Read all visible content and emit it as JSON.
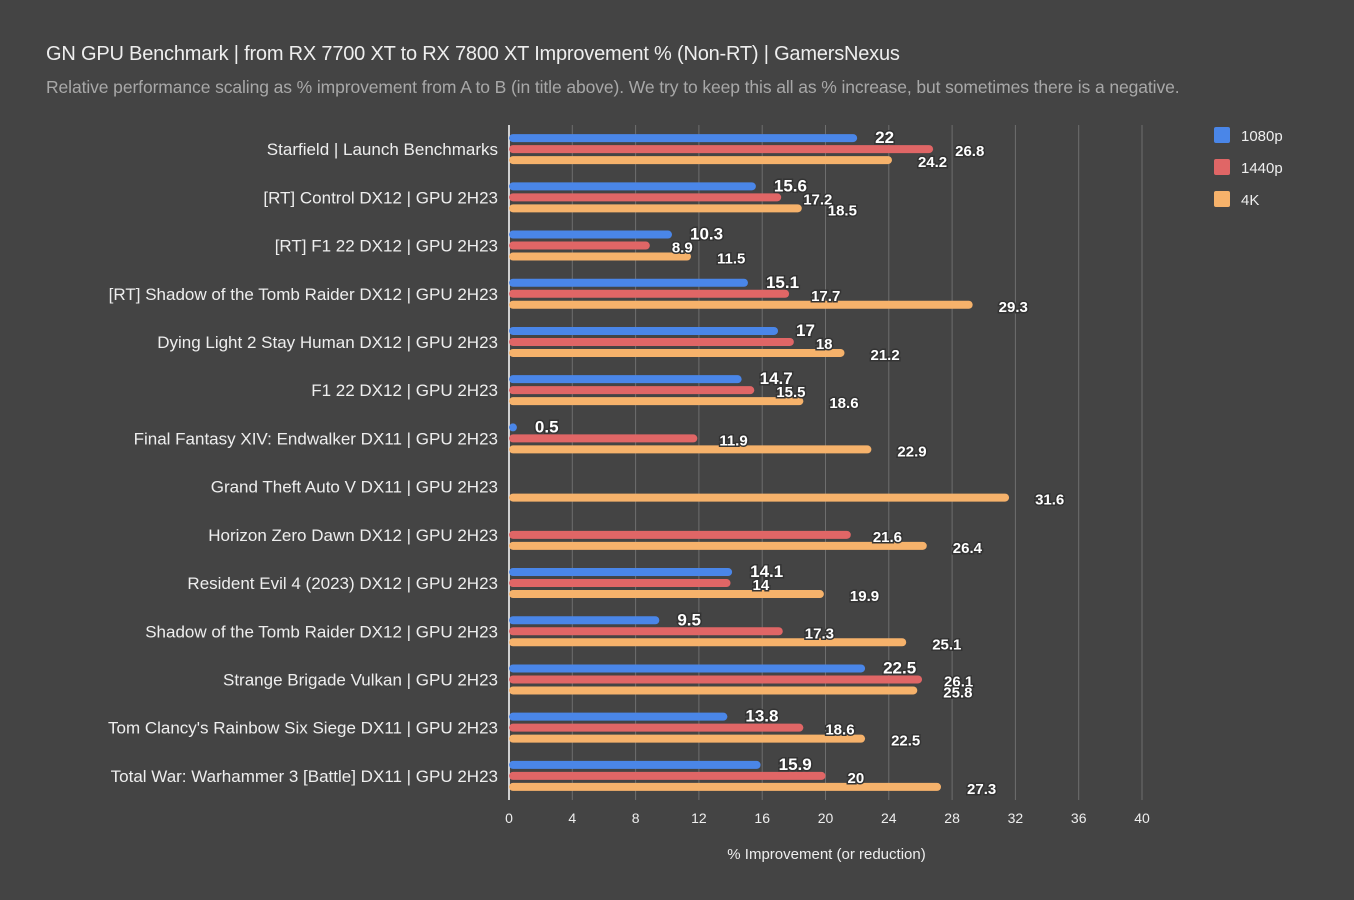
{
  "chart_data": {
    "type": "bar",
    "orientation": "horizontal",
    "title": "GN GPU Benchmark | from RX 7700 XT to RX 7800 XT Improvement % (Non-RT) | GamersNexus",
    "subtitle": "Relative performance scaling as % improvement from A to B (in title above). We try to keep this all as % increase, but sometimes there is a negative.",
    "xlabel": "% Improvement (or reduction)",
    "ylabel": "",
    "xlim": [
      0,
      40
    ],
    "xticks": [
      "0",
      "4",
      "8",
      "12",
      "16",
      "20",
      "24",
      "28",
      "32",
      "36",
      "40"
    ],
    "grid": true,
    "legend_position": "top-right",
    "categories": [
      "Starfield | Launch Benchmarks",
      "[RT] Control DX12 | GPU 2H23",
      "[RT] F1 22 DX12 | GPU 2H23",
      "[RT] Shadow of the Tomb Raider DX12 | GPU 2H23",
      "Dying Light 2 Stay Human DX12 | GPU 2H23",
      "F1 22 DX12 | GPU 2H23",
      "Final Fantasy XIV: Endwalker DX11 | GPU 2H23",
      "Grand Theft Auto V DX11 | GPU 2H23",
      "Horizon Zero Dawn DX12 | GPU 2H23",
      "Resident Evil 4 (2023) DX12 | GPU 2H23",
      "Shadow of the Tomb Raider DX12 | GPU 2H23",
      "Strange Brigade Vulkan | GPU 2H23",
      "Tom Clancy's Rainbow Six Siege DX11 | GPU 2H23",
      "Total War: Warhammer 3 [Battle] DX11 | GPU 2H23"
    ],
    "series": [
      {
        "name": "1080p",
        "color": "#4a86e8",
        "values": [
          22,
          15.6,
          10.3,
          15.1,
          17,
          14.7,
          0.5,
          null,
          null,
          14.1,
          9.5,
          22.5,
          13.8,
          15.9
        ]
      },
      {
        "name": "1440p",
        "color": "#e06666",
        "values": [
          26.8,
          17.2,
          8.9,
          17.7,
          18,
          15.5,
          11.9,
          null,
          21.6,
          14,
          17.3,
          26.1,
          18.6,
          20
        ]
      },
      {
        "name": "4K",
        "color": "#f6b26b",
        "values": [
          24.2,
          18.5,
          11.5,
          29.3,
          21.2,
          18.6,
          22.9,
          31.6,
          26.4,
          19.9,
          25.1,
          25.8,
          22.5,
          27.3
        ]
      }
    ]
  }
}
